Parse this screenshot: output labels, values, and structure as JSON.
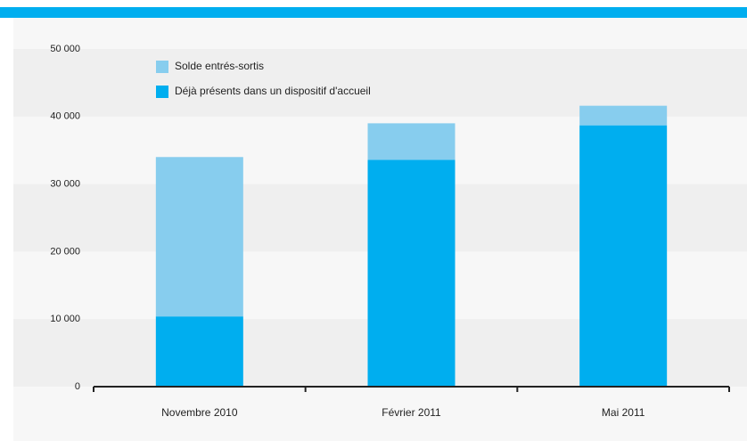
{
  "chart_data": {
    "type": "stacked_bar",
    "categories": [
      "Novembre 2010",
      "Février 2011",
      "Mai 2011"
    ],
    "series": [
      {
        "name": "Déjà présents dans un dispositif d'accueil",
        "color": "#00aeef",
        "values": [
          10400,
          33600,
          38700
        ]
      },
      {
        "name": "Solde entrés-sortis",
        "color": "#87cdee",
        "values": [
          23600,
          5400,
          2900
        ]
      }
    ],
    "ylim": [
      0,
      50000
    ],
    "yticks": [
      0,
      {
        "value": 10000,
        "label": "10 000"
      },
      {
        "value": 20000,
        "label": "20 000"
      },
      {
        "value": 30000,
        "label": "30 000"
      },
      {
        "value": 40000,
        "label": "40 000"
      },
      {
        "value": 50000,
        "label": "50 000"
      }
    ],
    "legend": "top-left"
  }
}
